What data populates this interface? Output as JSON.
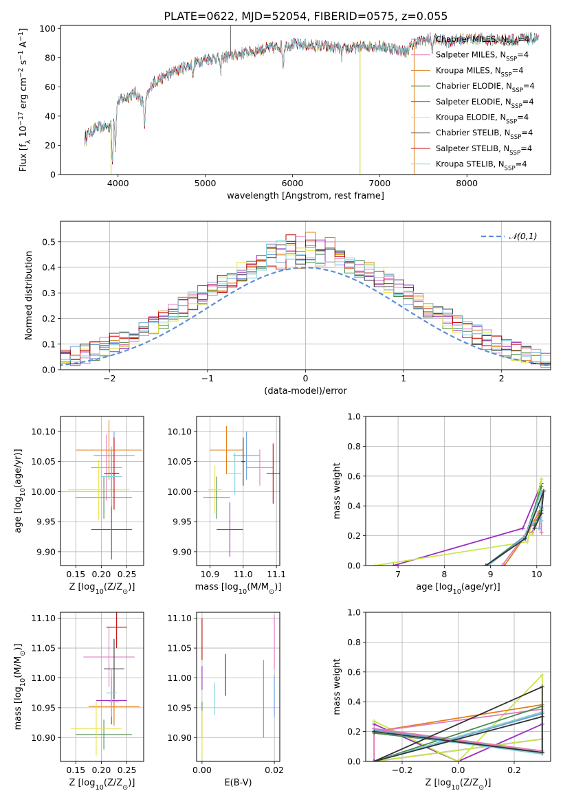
{
  "figure": {
    "title": "PLATE=0622, MJD=52054, FIBERID=0575, z=0.055"
  },
  "colors": {
    "models": [
      "#6f9fd8",
      "#e47bc0",
      "#e0801c",
      "#4c8a4c",
      "#9a2cc0",
      "#e8e040",
      "#333333",
      "#c00000",
      "#7fd0dd"
    ],
    "thick_lines": [
      "#9a2cc0",
      "#c8e64a",
      "#e0801c",
      "#e47bc0",
      "#6f9fd8",
      "#4c8a4c",
      "#7fd0dd",
      "#333333"
    ],
    "gaussian": "#5b8ed8",
    "grid": "#b0b0b0"
  },
  "legend_models": [
    "Chabrier MILES, N_SSP=4",
    "Salpeter MILES, N_SSP=4",
    "Kroupa MILES, N_SSP=4",
    "Chabrier ELODIE, N_SSP=4",
    "Salpeter ELODIE, N_SSP=4",
    "Kroupa ELODIE, N_SSP=4",
    "Chabrier STELIB, N_SSP=4",
    "Salpeter STELIB, N_SSP=4",
    "Kroupa STELIB, N_SSP=4"
  ],
  "chart_data": [
    {
      "id": "spectrum",
      "type": "line",
      "xlabel": "wavelength [Angstrom, rest frame]",
      "ylabel": "Flux [f_λ 10^-17 erg cm^-2 s^-1 A^-1]",
      "xlim": [
        3340,
        8960
      ],
      "ylim": [
        0,
        102
      ],
      "xticks": [
        4000,
        5000,
        6000,
        7000,
        8000
      ],
      "yticks": [
        0,
        20,
        40,
        60,
        80,
        100
      ],
      "grid": false,
      "legend_position": "right",
      "anchors": [
        [
          3620,
          26
        ],
        [
          3750,
          32
        ],
        [
          3900,
          33
        ],
        [
          3960,
          42
        ],
        [
          4000,
          50
        ],
        [
          4200,
          56
        ],
        [
          4300,
          48
        ],
        [
          4400,
          63
        ],
        [
          4700,
          72
        ],
        [
          5000,
          79
        ],
        [
          5200,
          80
        ],
        [
          5500,
          84
        ],
        [
          5900,
          88
        ],
        [
          6000,
          89
        ],
        [
          6300,
          88
        ],
        [
          6600,
          86
        ],
        [
          6900,
          88
        ],
        [
          7100,
          87
        ],
        [
          7300,
          84
        ],
        [
          7400,
          90
        ],
        [
          7600,
          93
        ],
        [
          7800,
          91
        ],
        [
          8000,
          93
        ],
        [
          8400,
          92
        ],
        [
          8800,
          93
        ]
      ],
      "features": [
        {
          "x": 3935,
          "depth": 30
        },
        {
          "x": 3970,
          "depth": 26
        },
        {
          "x": 4305,
          "depth": 15
        },
        {
          "x": 4861,
          "depth": 8
        },
        {
          "x": 5175,
          "depth": 10
        },
        {
          "x": 5893,
          "depth": 14
        },
        {
          "x": 6563,
          "depth": 6
        },
        {
          "x": 7605,
          "depth": 9
        }
      ],
      "spikes": [
        {
          "x": 3920,
          "to": 0
        },
        {
          "x": 5290,
          "to": 102
        },
        {
          "x": 6775,
          "to": 0
        },
        {
          "x": 7395,
          "to": 0
        }
      ]
    },
    {
      "id": "residuals",
      "type": "histogram",
      "xlabel": "(data-model)/error",
      "ylabel": "Normed distribution",
      "xlim": [
        -2.5,
        2.5
      ],
      "ylim": [
        0,
        0.58
      ],
      "xticks": [
        -2,
        -1,
        0,
        1,
        2
      ],
      "yticks": [
        0.0,
        0.1,
        0.2,
        0.3,
        0.4,
        0.5
      ],
      "grid": true,
      "bin_width": 0.1,
      "legend": "𝒩(0,1)",
      "legend_position": "top-right",
      "gaussian": {
        "mean": 0,
        "sigma": 1
      }
    },
    {
      "id": "age_vs_Z",
      "type": "errorbar",
      "xlabel": "Z [log10(Z/Z⊙)]",
      "ylabel": "age  [log10(age/yr)]",
      "xlim": [
        0.12,
        0.283
      ],
      "ylim": [
        9.877,
        10.125
      ],
      "xticks": [
        0.15,
        0.2,
        0.25
      ],
      "yticks": [
        9.9,
        9.95,
        10.0,
        10.05,
        10.1
      ],
      "grid": true,
      "points": [
        {
          "x": 0.225,
          "xerr": 0.04,
          "y": 10.06,
          "yerr": 0.04
        },
        {
          "x": 0.21,
          "xerr": 0.03,
          "y": 10.04,
          "yerr": 0.055
        },
        {
          "x": 0.215,
          "xerr": 0.065,
          "y": 10.069,
          "yerr": 0.05
        },
        {
          "x": 0.205,
          "xerr": 0.055,
          "y": 9.99,
          "yerr": 0.035
        },
        {
          "x": 0.22,
          "xerr": 0.04,
          "y": 9.937,
          "yerr": 0.05
        },
        {
          "x": 0.195,
          "xerr": 0.06,
          "y": 10.003,
          "yerr": 0.05
        },
        {
          "x": 0.22,
          "xerr": 0.015,
          "y": 10.03,
          "yerr": 0.04
        },
        {
          "x": 0.225,
          "xerr": 0.01,
          "y": 10.03,
          "yerr": 0.06
        },
        {
          "x": 0.22,
          "xerr": 0.02,
          "y": 10.025,
          "yerr": 0.05
        }
      ]
    },
    {
      "id": "age_vs_mass",
      "type": "errorbar",
      "xlabel": "mass [log10(M/M⊙)]",
      "ylabel": "",
      "xlim": [
        10.86,
        11.11
      ],
      "ylim": [
        9.877,
        10.125
      ],
      "xticks": [
        10.9,
        11.0,
        11.1
      ],
      "yticks": [
        9.9,
        9.95,
        10.0,
        10.05,
        10.1
      ],
      "grid": true,
      "points": [
        {
          "x": 11.01,
          "xerr": 0.04,
          "y": 10.06,
          "yerr": 0.04
        },
        {
          "x": 11.05,
          "xerr": 0.04,
          "y": 10.04,
          "yerr": 0.03
        },
        {
          "x": 10.95,
          "xerr": 0.05,
          "y": 10.069,
          "yerr": 0.04
        },
        {
          "x": 10.92,
          "xerr": 0.04,
          "y": 9.99,
          "yerr": 0.035
        },
        {
          "x": 10.96,
          "xerr": 0.04,
          "y": 9.937,
          "yerr": 0.045
        },
        {
          "x": 10.915,
          "xerr": 0.02,
          "y": 10.003,
          "yerr": 0.04
        },
        {
          "x": 11.0,
          "xerr": 0.005,
          "y": 10.05,
          "yerr": 0.04
        },
        {
          "x": 11.09,
          "xerr": 0.02,
          "y": 10.03,
          "yerr": 0.05
        },
        {
          "x": 10.975,
          "xerr": 0.02,
          "y": 10.03,
          "yerr": 0.035
        }
      ]
    },
    {
      "id": "weights_vs_age",
      "type": "line",
      "xlabel": "age  [log10(age/yr)]",
      "ylabel": "mass weight",
      "xlim": [
        6.3,
        10.3
      ],
      "ylim": [
        0,
        1.0
      ],
      "xticks": [
        7,
        8,
        9,
        10
      ],
      "yticks": [
        0.0,
        0.2,
        0.4,
        0.6,
        0.8,
        1.0
      ],
      "grid": true,
      "series": [
        {
          "values": [
            [
              6.9,
              0.0
            ],
            [
              9.7,
              0.25
            ],
            [
              10.1,
              0.55
            ],
            [
              10.1,
              0.38
            ],
            [
              9.9,
              0.22
            ]
          ]
        },
        {
          "values": [
            [
              6.5,
              0.0
            ],
            [
              9.8,
              0.16
            ],
            [
              10.1,
              0.58
            ],
            [
              10.1,
              0.37
            ],
            [
              9.9,
              0.21
            ]
          ]
        },
        {
          "values": [
            [
              9.3,
              0.0
            ],
            [
              9.8,
              0.22
            ],
            [
              10.05,
              0.36
            ],
            [
              10.1,
              0.38
            ],
            [
              10.1,
              0.22
            ]
          ]
        },
        {
          "values": [
            [
              9.25,
              0.0
            ],
            [
              9.8,
              0.23
            ],
            [
              10.1,
              0.35
            ],
            [
              10.1,
              0.39
            ],
            [
              10.1,
              0.22
            ]
          ]
        },
        {
          "values": [
            [
              8.9,
              0.0
            ],
            [
              9.75,
              0.2
            ],
            [
              10.0,
              0.42
            ],
            [
              10.1,
              0.38
            ],
            [
              10.05,
              0.25
            ]
          ]
        },
        {
          "values": [
            [
              8.9,
              0.0
            ],
            [
              9.75,
              0.19
            ],
            [
              10.1,
              0.53
            ],
            [
              10.1,
              0.37
            ],
            [
              9.95,
              0.27
            ]
          ]
        },
        {
          "values": [
            [
              8.95,
              0.0
            ],
            [
              9.75,
              0.19
            ],
            [
              10.1,
              0.5
            ],
            [
              10.1,
              0.3
            ],
            [
              9.9,
              0.29
            ]
          ]
        },
        {
          "values": [
            [
              8.9,
              0.0
            ],
            [
              9.75,
              0.18
            ],
            [
              10.15,
              0.5
            ],
            [
              10.1,
              0.35
            ],
            [
              9.95,
              0.25
            ]
          ]
        }
      ]
    },
    {
      "id": "mass_vs_Z",
      "type": "errorbar",
      "xlabel": "Z [log10(Z/Z⊙)]",
      "ylabel": "mass [log10(M/M⊙)]",
      "xlim": [
        0.12,
        0.283
      ],
      "ylim": [
        10.86,
        11.11
      ],
      "xticks": [
        0.15,
        0.2,
        0.25
      ],
      "yticks": [
        10.9,
        10.95,
        11.0,
        11.05,
        11.1
      ],
      "grid": true,
      "points": [
        {
          "x": 0.225,
          "xerr": 0.01,
          "y": 10.96,
          "yerr": 0.04
        },
        {
          "x": 0.215,
          "xerr": 0.05,
          "y": 11.035,
          "yerr": 0.05
        },
        {
          "x": 0.225,
          "xerr": 0.05,
          "y": 10.952,
          "yerr": 0.03
        },
        {
          "x": 0.205,
          "xerr": 0.055,
          "y": 10.905,
          "yerr": 0.025
        },
        {
          "x": 0.22,
          "xerr": 0.03,
          "y": 10.962,
          "yerr": 0.04
        },
        {
          "x": 0.19,
          "xerr": 0.05,
          "y": 10.915,
          "yerr": 0.045
        },
        {
          "x": 0.225,
          "xerr": 0.02,
          "y": 11.015,
          "yerr": 0.05
        },
        {
          "x": 0.23,
          "xerr": 0.02,
          "y": 11.085,
          "yerr": 0.035
        },
        {
          "x": 0.22,
          "xerr": 0.01,
          "y": 10.975,
          "yerr": 0.04
        }
      ]
    },
    {
      "id": "mass_vs_EBV",
      "type": "errorbar",
      "xlabel": "E(B-V)",
      "ylabel": "",
      "xlim": [
        -0.0015,
        0.0215
      ],
      "ylim": [
        10.86,
        11.11
      ],
      "xticks": [
        0.0,
        0.02
      ],
      "yticks": [
        10.9,
        10.95,
        11.0,
        11.05,
        11.1
      ],
      "grid": true,
      "points": [
        {
          "x": 0.02,
          "xerr": 0,
          "y": 10.97,
          "yerr": 0.035
        },
        {
          "x": 0.02,
          "xerr": 0,
          "y": 11.06,
          "yerr": 0.045
        },
        {
          "x": 0.017,
          "xerr": 0,
          "y": 10.965,
          "yerr": 0.065
        },
        {
          "x": 0.0,
          "xerr": 0,
          "y": 10.93,
          "yerr": 0.03
        },
        {
          "x": 0.0,
          "xerr": 0,
          "y": 11.0,
          "yerr": 0.02
        },
        {
          "x": 0.0,
          "xerr": 0,
          "y": 10.905,
          "yerr": 0.04
        },
        {
          "x": 0.0065,
          "xerr": 0,
          "y": 11.005,
          "yerr": 0.035
        },
        {
          "x": 0.0,
          "xerr": 0,
          "y": 11.065,
          "yerr": 0.035
        },
        {
          "x": 0.0035,
          "xerr": 0,
          "y": 10.965,
          "yerr": 0.027
        }
      ]
    },
    {
      "id": "weights_vs_Z",
      "type": "line",
      "xlabel": "Z [log10(Z/Z⊙)]",
      "ylabel": "mass weight",
      "xlim": [
        -0.33,
        0.33
      ],
      "ylim": [
        0,
        1.0
      ],
      "xticks": [
        -0.2,
        0.0,
        0.2
      ],
      "yticks": [
        0.0,
        0.2,
        0.4,
        0.6,
        0.8,
        1.0
      ],
      "grid": true,
      "series": [
        {
          "values": [
            [
              -0.3,
              0.25
            ],
            [
              0.0,
              0.0
            ],
            [
              0.3,
              0.25
            ],
            [
              0.3,
              0.15
            ],
            [
              -0.3,
              0.0
            ]
          ]
        },
        {
          "values": [
            [
              -0.3,
              0.27
            ],
            [
              0.0,
              0.0
            ],
            [
              0.3,
              0.58
            ],
            [
              0.3,
              0.15
            ],
            [
              -0.3,
              0.0
            ]
          ]
        },
        {
          "values": [
            [
              -0.3,
              0.22
            ],
            [
              0.3,
              0.06
            ],
            [
              0.3,
              0.38
            ],
            [
              -0.3,
              0.2
            ],
            [
              -0.3,
              0.0
            ]
          ]
        },
        {
          "values": [
            [
              -0.3,
              0.22
            ],
            [
              0.3,
              0.07
            ],
            [
              0.3,
              0.35
            ],
            [
              -0.3,
              0.2
            ],
            [
              -0.3,
              0.0
            ]
          ]
        },
        {
          "values": [
            [
              -0.3,
              0.21
            ],
            [
              0.3,
              0.06
            ],
            [
              0.3,
              0.33
            ],
            [
              -0.3,
              0.0
            ],
            [
              0.3,
              0.32
            ]
          ]
        },
        {
          "values": [
            [
              -0.3,
              0.19
            ],
            [
              0.3,
              0.06
            ],
            [
              0.3,
              0.37
            ],
            [
              -0.3,
              0.0
            ],
            [
              0.3,
              0.33
            ]
          ]
        },
        {
          "values": [
            [
              -0.3,
              0.2
            ],
            [
              0.3,
              0.05
            ],
            [
              0.3,
              0.3
            ],
            [
              -0.3,
              0.0
            ],
            [
              0.3,
              0.33
            ]
          ]
        },
        {
          "values": [
            [
              -0.3,
              0.2
            ],
            [
              0.3,
              0.06
            ],
            [
              0.3,
              0.5
            ],
            [
              -0.3,
              0.0
            ],
            [
              0.3,
              0.3
            ]
          ]
        }
      ]
    }
  ]
}
